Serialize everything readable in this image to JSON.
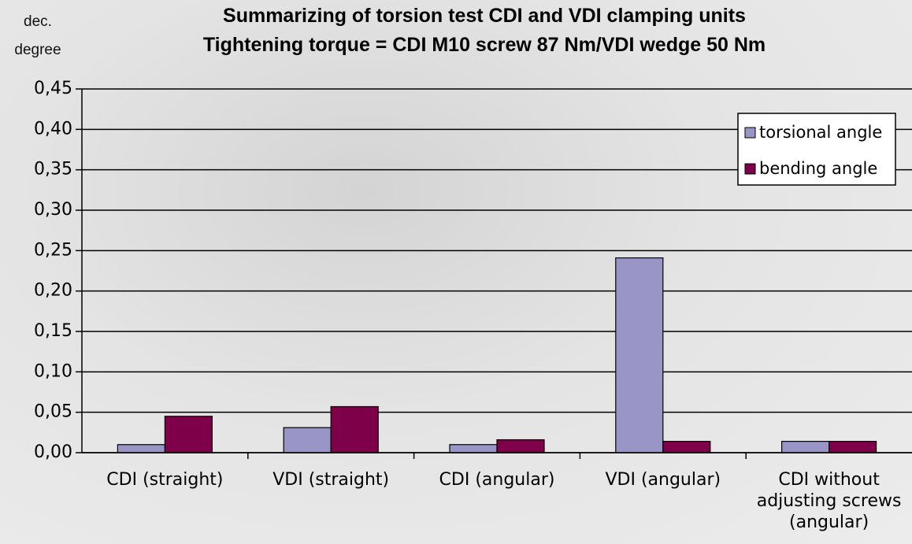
{
  "chart_data": {
    "type": "bar",
    "title": "Summarizing of torsion test CDI and VDI clamping units",
    "subtitle": "Tightening torque = CDI M10 screw 87 Nm/VDI wedge 50 Nm",
    "y_label": "dec. degree",
    "categories": [
      "CDI (straight)",
      "VDI (straight)",
      "CDI (angular)",
      "VDI (angular)",
      "CDI without adjusting screws (angular)"
    ],
    "series": [
      {
        "name": "torsional angle",
        "color": "#9995c6",
        "values": [
          0.01,
          0.031,
          0.01,
          0.241,
          0.014
        ]
      },
      {
        "name": "bending angle",
        "color": "#7d0048",
        "values": [
          0.045,
          0.057,
          0.016,
          0.014,
          0.014
        ]
      }
    ],
    "ylim": [
      0,
      0.45
    ],
    "yticks": [
      {
        "value": 0,
        "label": "0,00"
      },
      {
        "value": 0.05,
        "label": "0,05"
      },
      {
        "value": 0.1,
        "label": "0,10"
      },
      {
        "value": 0.15,
        "label": "0,15"
      },
      {
        "value": 0.2,
        "label": "0,20"
      },
      {
        "value": 0.25,
        "label": "0,25"
      },
      {
        "value": 0.3,
        "label": "0,30"
      },
      {
        "value": 0.35,
        "label": "0,35"
      },
      {
        "value": 0.4,
        "label": "0,40"
      },
      {
        "value": 0.45,
        "label": "0,45"
      }
    ],
    "grid": true,
    "legend_position": "upper right"
  }
}
